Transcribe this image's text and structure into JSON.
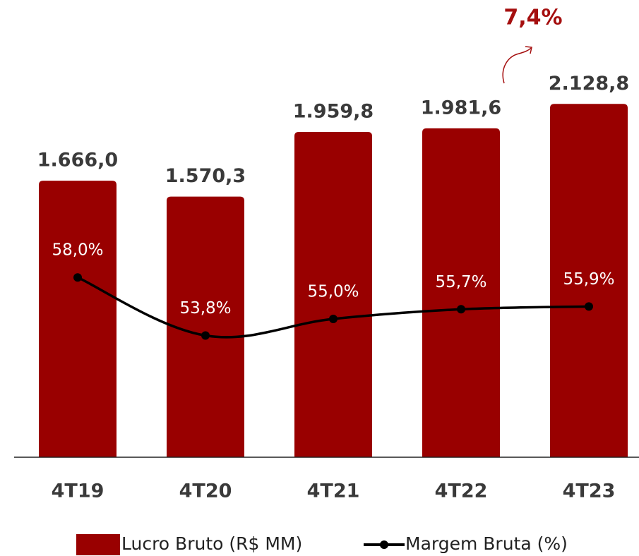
{
  "chart_data": {
    "type": "bar",
    "annotation": "7,4%",
    "categories": [
      "4T19",
      "4T20",
      "4T21",
      "4T22",
      "4T23"
    ],
    "series": [
      {
        "name": "Lucro Bruto (R$ MM)",
        "type": "bar",
        "color": "#990000",
        "values": [
          1666.0,
          1570.3,
          1959.8,
          1981.6,
          2128.8
        ],
        "value_labels": [
          "1.666,0",
          "1.570,3",
          "1.959,8",
          "1.981,6",
          "2.128,8"
        ]
      },
      {
        "name": "Margem Bruta (%)",
        "type": "line",
        "color": "#000000",
        "axis": "y2",
        "values": [
          58.0,
          53.8,
          55.0,
          55.7,
          55.9
        ],
        "value_labels": [
          "58,0%",
          "53,8%",
          "55,0%",
          "55,7%",
          "55,9%"
        ]
      }
    ],
    "ylim": [
      0,
      2500
    ],
    "y2lim": [
      45,
      75
    ],
    "legend": "bottom"
  }
}
